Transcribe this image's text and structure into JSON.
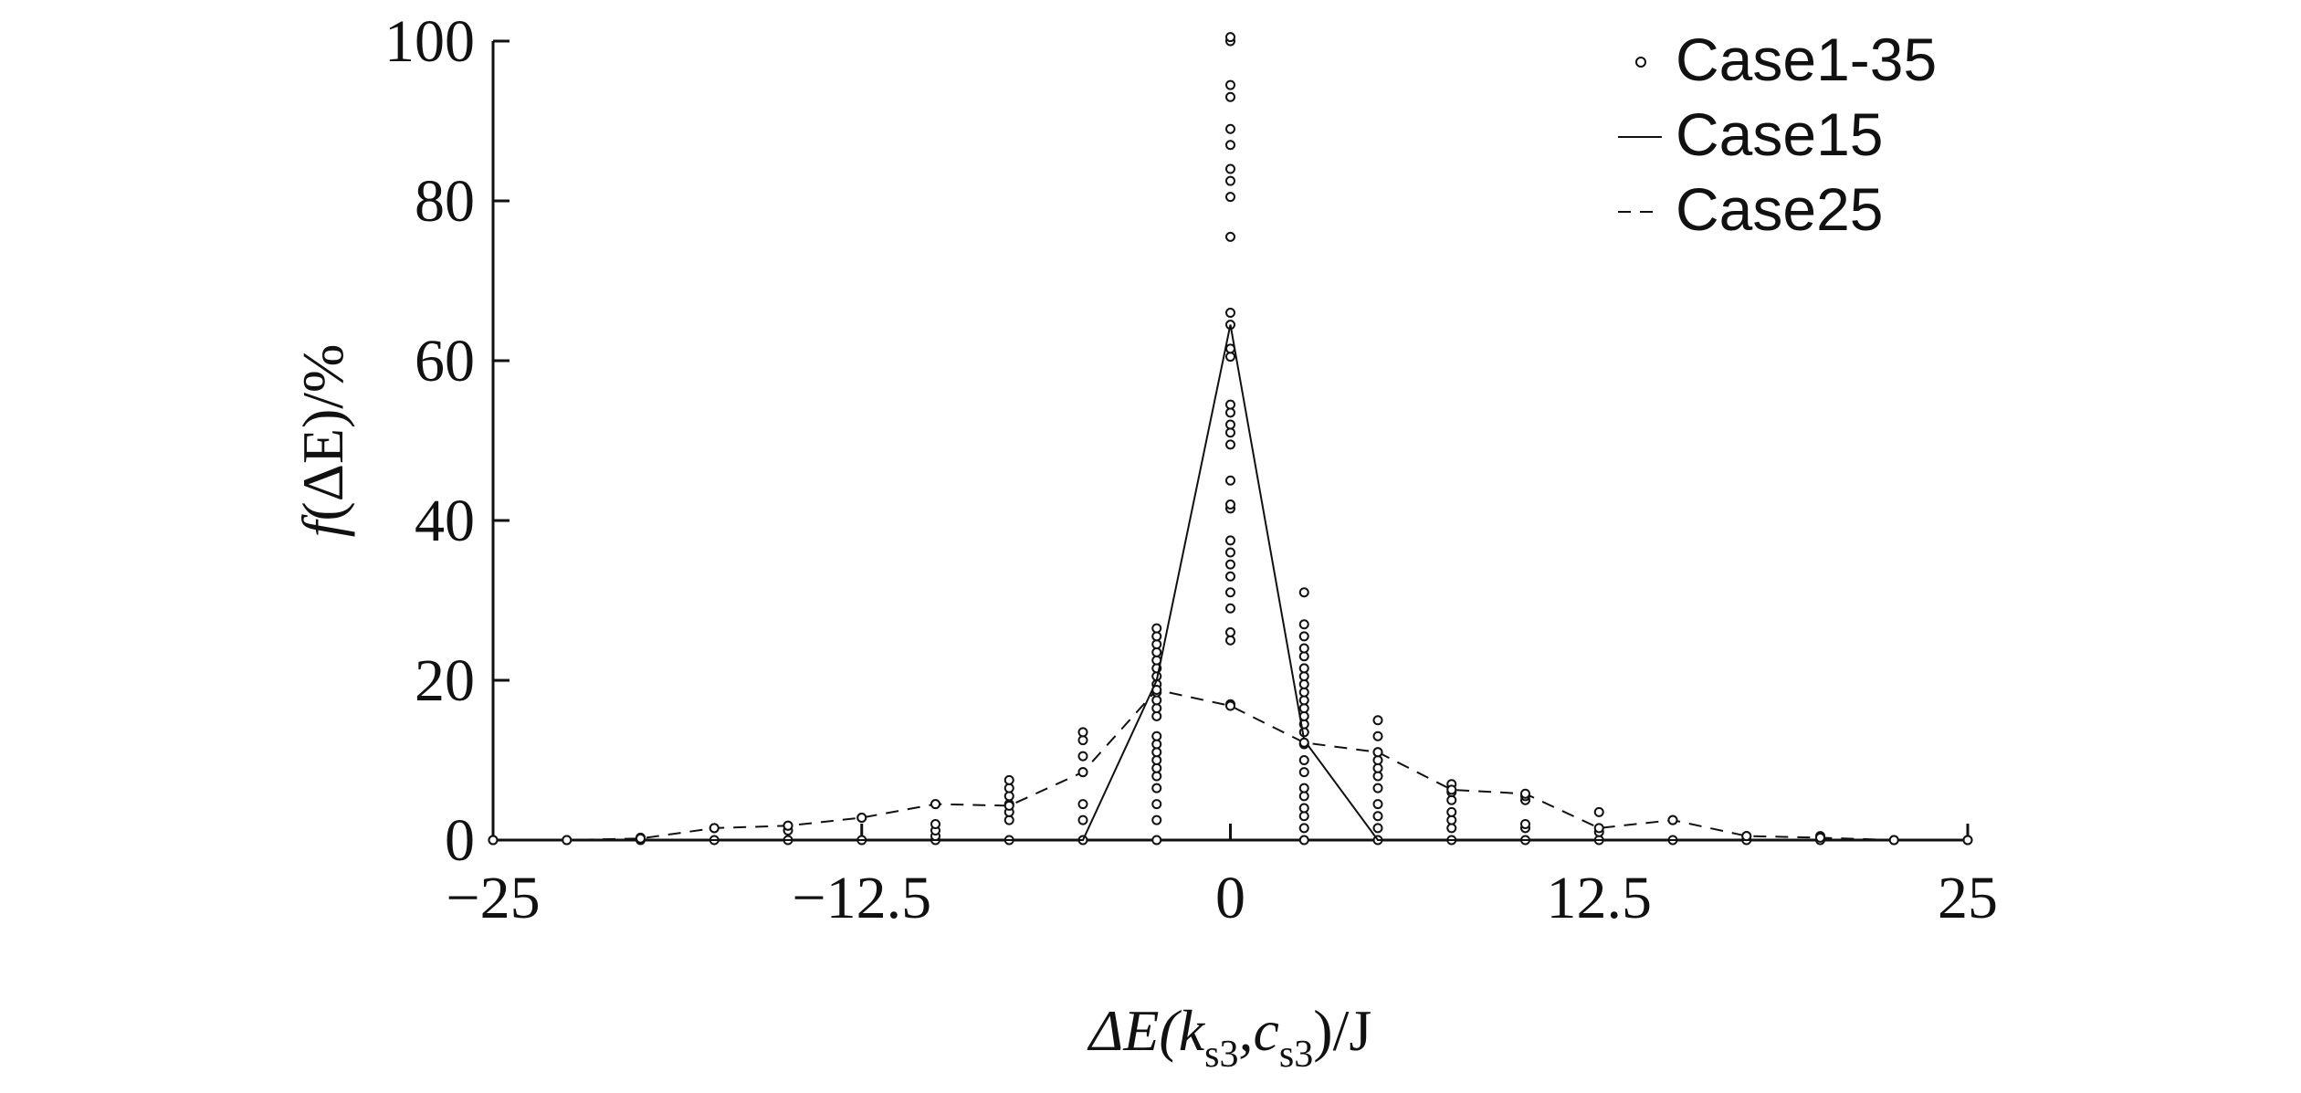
{
  "chart_data": {
    "type": "scatter",
    "xlabel": {
      "prefix": "ΔE(k",
      "sub1": "s3",
      "mid": ",c",
      "sub2": "s3",
      "suffix": ")/J"
    },
    "ylabel": {
      "italic_f": "f",
      "rest": "(ΔE)/%"
    },
    "xlim": [
      -25,
      25
    ],
    "ylim": [
      0,
      100
    ],
    "xticks": [
      -25,
      -12.5,
      0,
      12.5,
      25
    ],
    "xtick_labels": [
      "−25",
      "−12.5",
      "0",
      "12.5",
      "25"
    ],
    "yticks": [
      0,
      20,
      40,
      60,
      80,
      100
    ],
    "ytick_labels": [
      "0",
      "20",
      "40",
      "60",
      "80",
      "100"
    ],
    "grid": false,
    "legend_position": "top-right",
    "colors": {
      "ink": "#111111",
      "background": "#ffffff"
    },
    "series": [
      {
        "name": "Case1-35",
        "style": "markers",
        "points": [
          [
            -25,
            0
          ],
          [
            -22.5,
            0
          ],
          [
            -20,
            0
          ],
          [
            -20,
            0.3
          ],
          [
            -17.5,
            0
          ],
          [
            -17.5,
            1.5
          ],
          [
            -15,
            0
          ],
          [
            -15,
            1.2
          ],
          [
            -15,
            1.8
          ],
          [
            -12.5,
            0
          ],
          [
            -12.5,
            2.8
          ],
          [
            -10,
            0
          ],
          [
            -10,
            0.5
          ],
          [
            -10,
            1.2
          ],
          [
            -10,
            2.0
          ],
          [
            -10,
            4.5
          ],
          [
            -7.5,
            0
          ],
          [
            -7.5,
            2.5
          ],
          [
            -7.5,
            3.5
          ],
          [
            -7.5,
            4.5
          ],
          [
            -7.5,
            5.5
          ],
          [
            -7.5,
            6.5
          ],
          [
            -7.5,
            7.5
          ],
          [
            -5,
            0
          ],
          [
            -5,
            2.5
          ],
          [
            -5,
            4.5
          ],
          [
            -5,
            8.5
          ],
          [
            -5,
            10.5
          ],
          [
            -5,
            12.5
          ],
          [
            -5,
            13.5
          ],
          [
            -2.5,
            0
          ],
          [
            -2.5,
            2.5
          ],
          [
            -2.5,
            4.5
          ],
          [
            -2.5,
            6.5
          ],
          [
            -2.5,
            8
          ],
          [
            -2.5,
            9
          ],
          [
            -2.5,
            10
          ],
          [
            -2.5,
            11
          ],
          [
            -2.5,
            12
          ],
          [
            -2.5,
            13
          ],
          [
            -2.5,
            15.5
          ],
          [
            -2.5,
            16.5
          ],
          [
            -2.5,
            17.5
          ],
          [
            -2.5,
            18.5
          ],
          [
            -2.5,
            19.5
          ],
          [
            -2.5,
            20.5
          ],
          [
            -2.5,
            21.5
          ],
          [
            -2.5,
            22.5
          ],
          [
            -2.5,
            23.5
          ],
          [
            -2.5,
            24.5
          ],
          [
            -2.5,
            25.5
          ],
          [
            -2.5,
            26.5
          ],
          [
            0,
            17
          ],
          [
            0,
            25
          ],
          [
            0,
            26
          ],
          [
            0,
            29
          ],
          [
            0,
            31
          ],
          [
            0,
            33
          ],
          [
            0,
            34.5
          ],
          [
            0,
            36
          ],
          [
            0,
            37.5
          ],
          [
            0,
            41.5
          ],
          [
            0,
            42
          ],
          [
            0,
            45
          ],
          [
            0,
            49.5
          ],
          [
            0,
            51
          ],
          [
            0,
            52
          ],
          [
            0,
            53.5
          ],
          [
            0,
            54.5
          ],
          [
            0,
            60.5
          ],
          [
            0,
            61.5
          ],
          [
            0,
            64.5
          ],
          [
            0,
            66
          ],
          [
            0,
            75.5
          ],
          [
            0,
            80.5
          ],
          [
            0,
            82.5
          ],
          [
            0,
            84
          ],
          [
            0,
            87
          ],
          [
            0,
            89
          ],
          [
            0,
            93
          ],
          [
            0,
            94.5
          ],
          [
            0,
            100
          ],
          [
            0,
            100.5
          ],
          [
            2.5,
            0
          ],
          [
            2.5,
            1.5
          ],
          [
            2.5,
            3
          ],
          [
            2.5,
            4
          ],
          [
            2.5,
            5.5
          ],
          [
            2.5,
            6.5
          ],
          [
            2.5,
            8.5
          ],
          [
            2.5,
            10
          ],
          [
            2.5,
            12
          ],
          [
            2.5,
            13.5
          ],
          [
            2.5,
            14.5
          ],
          [
            2.5,
            15.5
          ],
          [
            2.5,
            16.5
          ],
          [
            2.5,
            17.5
          ],
          [
            2.5,
            18.5
          ],
          [
            2.5,
            19.5
          ],
          [
            2.5,
            20.5
          ],
          [
            2.5,
            21.5
          ],
          [
            2.5,
            23
          ],
          [
            2.5,
            24
          ],
          [
            2.5,
            25.5
          ],
          [
            2.5,
            27
          ],
          [
            2.5,
            31
          ],
          [
            5,
            0
          ],
          [
            5,
            1.5
          ],
          [
            5,
            3
          ],
          [
            5,
            4.5
          ],
          [
            5,
            6.5
          ],
          [
            5,
            8
          ],
          [
            5,
            9
          ],
          [
            5,
            10
          ],
          [
            5,
            11
          ],
          [
            5,
            13
          ],
          [
            5,
            15
          ],
          [
            7.5,
            0
          ],
          [
            7.5,
            1.5
          ],
          [
            7.5,
            2.5
          ],
          [
            7.5,
            3.5
          ],
          [
            7.5,
            5
          ],
          [
            7.5,
            6
          ],
          [
            7.5,
            7
          ],
          [
            10,
            0
          ],
          [
            10,
            1.5
          ],
          [
            10,
            2
          ],
          [
            10,
            5
          ],
          [
            10,
            5.5
          ],
          [
            12.5,
            0
          ],
          [
            12.5,
            1
          ],
          [
            12.5,
            3.5
          ],
          [
            15,
            0
          ],
          [
            15,
            2.5
          ],
          [
            17.5,
            0
          ],
          [
            17.5,
            0.5
          ],
          [
            20,
            0
          ],
          [
            20,
            0.5
          ],
          [
            22.5,
            0
          ],
          [
            25,
            0
          ]
        ]
      },
      {
        "name": "Case15",
        "style": "solid",
        "points": [
          [
            -25,
            0
          ],
          [
            -5,
            0
          ],
          [
            -2.5,
            20
          ],
          [
            0,
            64.5
          ],
          [
            2.5,
            12.5
          ],
          [
            5,
            0
          ],
          [
            25,
            0
          ]
        ]
      },
      {
        "name": "Case25",
        "style": "dashed",
        "points": [
          [
            -25,
            0
          ],
          [
            -22.5,
            0
          ],
          [
            -20,
            0.2
          ],
          [
            -17.5,
            1.5
          ],
          [
            -15,
            1.8
          ],
          [
            -12.5,
            2.8
          ],
          [
            -10,
            4.5
          ],
          [
            -7.5,
            4.3
          ],
          [
            -5,
            8.5
          ],
          [
            -2.5,
            18.8
          ],
          [
            0,
            16.8
          ],
          [
            2.5,
            12.2
          ],
          [
            5,
            11
          ],
          [
            7.5,
            6.3
          ],
          [
            10,
            5.8
          ],
          [
            12.5,
            1.5
          ],
          [
            15,
            2.5
          ],
          [
            17.5,
            0.5
          ],
          [
            20,
            0.3
          ],
          [
            22.5,
            0
          ],
          [
            25,
            0
          ]
        ]
      }
    ]
  }
}
